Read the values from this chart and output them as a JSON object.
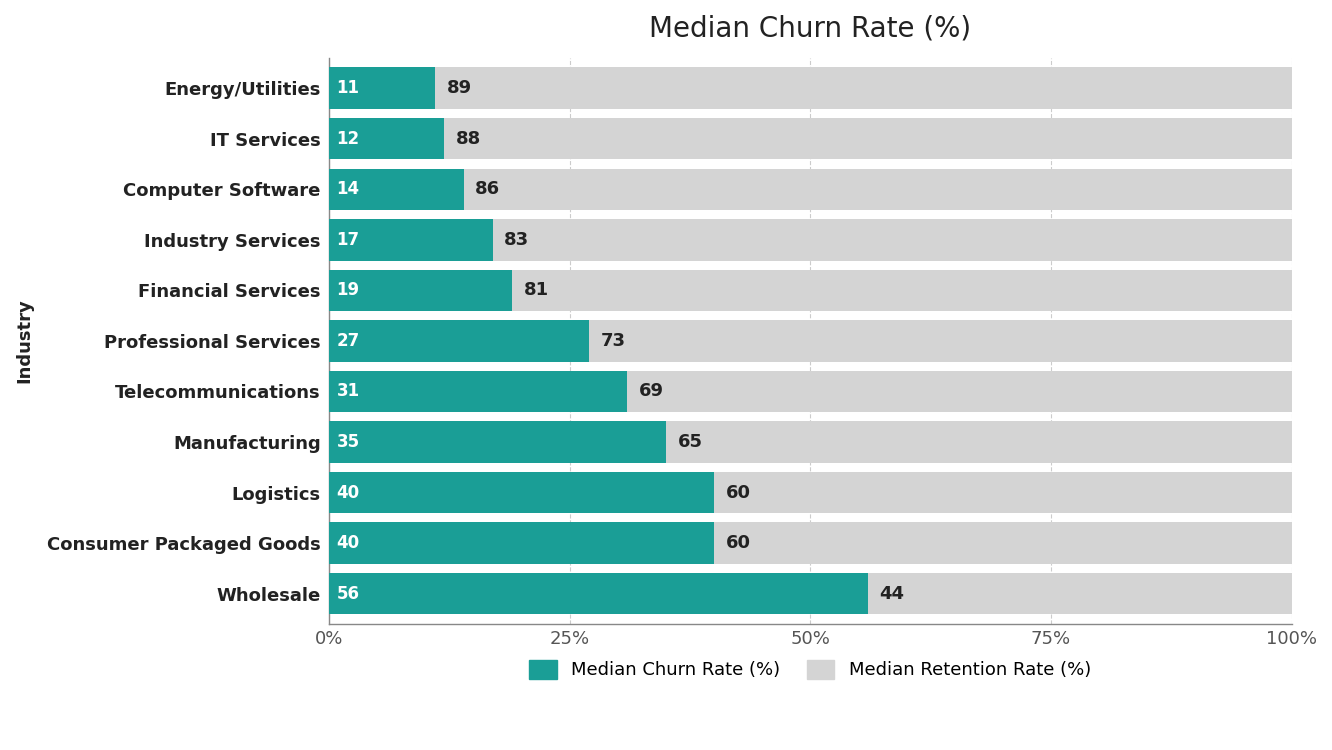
{
  "title": "Median Churn Rate (%)",
  "categories": [
    "Energy/Utilities",
    "IT Services",
    "Computer Software",
    "Industry Services",
    "Financial Services",
    "Professional Services",
    "Telecommunications",
    "Manufacturing",
    "Logistics",
    "Consumer Packaged Goods",
    "Wholesale"
  ],
  "churn_values": [
    11,
    12,
    14,
    17,
    19,
    27,
    31,
    35,
    40,
    40,
    56
  ],
  "retention_values": [
    89,
    88,
    86,
    83,
    81,
    73,
    69,
    65,
    60,
    60,
    44
  ],
  "churn_color": "#1a9e96",
  "retention_color": "#d4d4d4",
  "background_color": "#ffffff",
  "title_fontsize": 20,
  "label_fontsize": 13,
  "tick_fontsize": 13,
  "bar_label_fontsize_churn": 12,
  "bar_label_fontsize_retention": 13,
  "ylabel": "Industry",
  "xlim": [
    0,
    100
  ],
  "xticks": [
    0,
    25,
    50,
    75,
    100
  ],
  "xtick_labels": [
    "0%",
    "25%",
    "50%",
    "75%",
    "100%"
  ],
  "legend_churn_label": "Median Churn Rate (%)",
  "legend_retention_label": "Median Retention Rate (%)"
}
